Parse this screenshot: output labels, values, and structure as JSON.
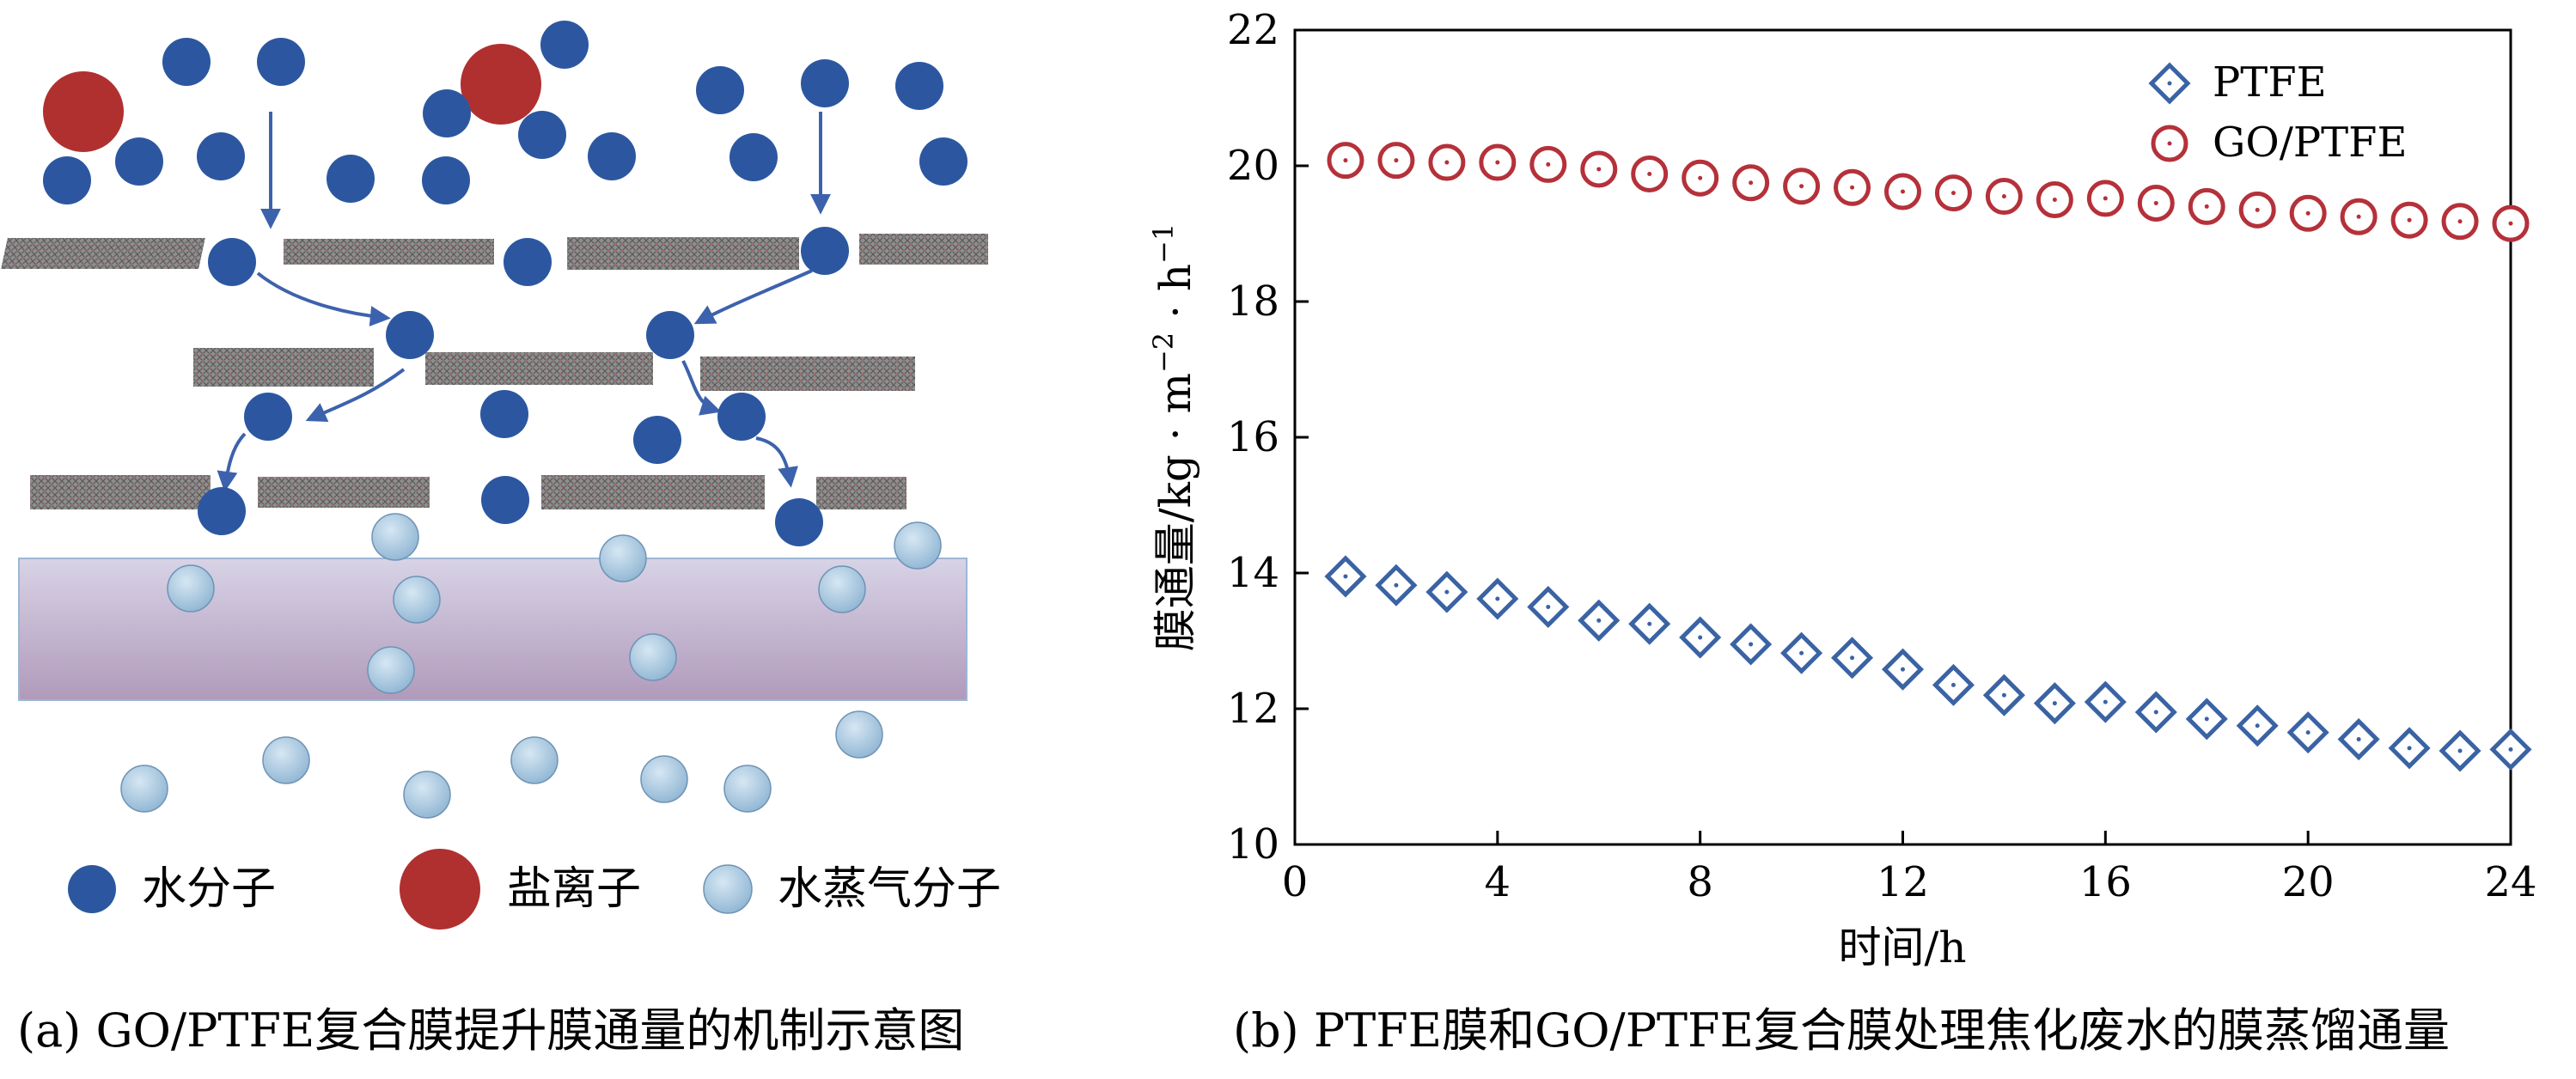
{
  "left_panel": {
    "caption": "(a) GO/PTFE复合膜提升膜通量的机制示意图",
    "legend": [
      {
        "label": "水分子",
        "color": "#2c57a0"
      },
      {
        "label": "盐离子",
        "color": "#b03030"
      },
      {
        "label": "水蒸气分子",
        "color": "#9fc2dd"
      }
    ]
  },
  "chart_data": {
    "type": "scatter",
    "caption": "(b) PTFE膜和GO/PTFE复合膜处理焦化废水的膜蒸馏通量",
    "xlabel": "时间/h",
    "ylabel_parts": [
      "膜通量/kg · m",
      "−2",
      " · h",
      "−1"
    ],
    "xlim": [
      0,
      24
    ],
    "ylim": [
      10,
      22
    ],
    "xticks": [
      "0",
      "4",
      "8",
      "12",
      "16",
      "20",
      "24"
    ],
    "yticks": [
      "10",
      "12",
      "14",
      "16",
      "18",
      "20",
      "22"
    ],
    "legend_position": "top-right",
    "x": [
      1,
      2,
      3,
      4,
      5,
      6,
      7,
      8,
      9,
      10,
      11,
      12,
      13,
      14,
      15,
      16,
      17,
      18,
      19,
      20,
      21,
      22,
      23,
      24
    ],
    "series": [
      {
        "name": "PTFE",
        "marker": "diamond",
        "color": "#3a63a4",
        "values": [
          13.95,
          13.82,
          13.72,
          13.62,
          13.5,
          13.3,
          13.25,
          13.05,
          12.95,
          12.82,
          12.75,
          12.58,
          12.35,
          12.2,
          12.08,
          12.1,
          11.95,
          11.85,
          11.75,
          11.65,
          11.55,
          11.42,
          11.38,
          11.4
        ]
      },
      {
        "name": "GO/PTFE",
        "marker": "circle",
        "color": "#b5313a",
        "values": [
          20.08,
          20.08,
          20.05,
          20.05,
          20.02,
          19.95,
          19.88,
          19.82,
          19.75,
          19.7,
          19.68,
          19.62,
          19.6,
          19.55,
          19.5,
          19.52,
          19.45,
          19.4,
          19.35,
          19.3,
          19.25,
          19.2,
          19.18,
          19.15
        ]
      }
    ]
  }
}
